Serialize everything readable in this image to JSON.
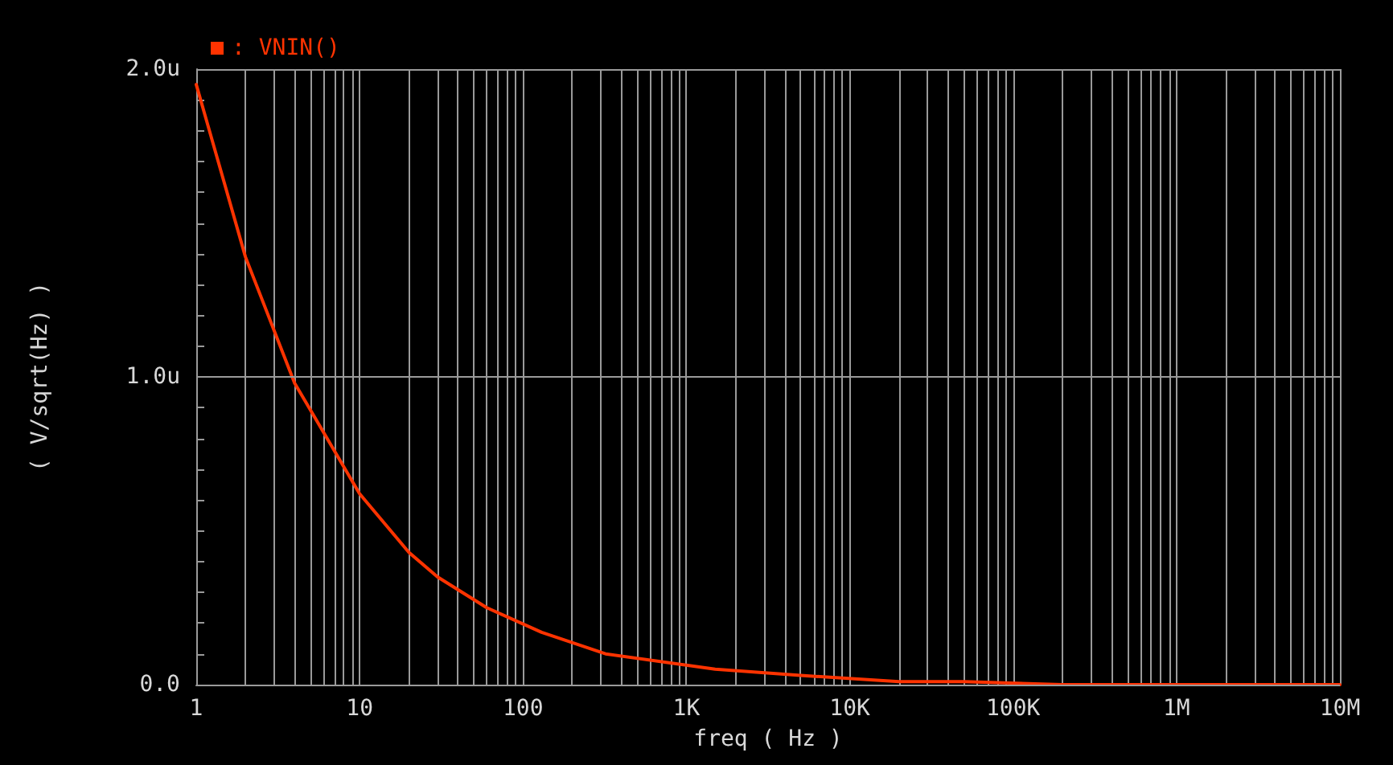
{
  "chart_data": {
    "type": "line",
    "xlabel": "freq ( Hz )",
    "ylabel": "( V/sqrt(Hz) )",
    "log": "x",
    "grid": true,
    "legend": "top left",
    "marker": "none",
    "line_style": "solid",
    "x": [
      1,
      2,
      4,
      10,
      20,
      30,
      60,
      130,
      320,
      1500,
      5000,
      20000,
      50000,
      200000,
      1000000,
      10000000
    ],
    "series": [
      {
        "name": ": VNIN()",
        "color": "#ff3300",
        "values": [
          1.95,
          1.39,
          0.98,
          0.62,
          0.43,
          0.35,
          0.25,
          0.17,
          0.1,
          0.05,
          0.03,
          0.01,
          0.01,
          0,
          0,
          0
        ]
      }
    ],
    "xlim": [
      1,
      10000000
    ],
    "xticks": [
      {
        "value": 1,
        "label": "1"
      },
      {
        "value": 2,
        "label": null
      },
      {
        "value": 3,
        "label": null
      },
      {
        "value": 4,
        "label": null
      },
      {
        "value": 5,
        "label": null
      },
      {
        "value": 6,
        "label": null
      },
      {
        "value": 7,
        "label": null
      },
      {
        "value": 8,
        "label": null
      },
      {
        "value": 9,
        "label": null
      },
      {
        "value": 10,
        "label": "10"
      },
      {
        "value": 20,
        "label": null
      },
      {
        "value": 30,
        "label": null
      },
      {
        "value": 40,
        "label": null
      },
      {
        "value": 50,
        "label": null
      },
      {
        "value": 60,
        "label": null
      },
      {
        "value": 70,
        "label": null
      },
      {
        "value": 80,
        "label": null
      },
      {
        "value": 90,
        "label": null
      },
      {
        "value": 100,
        "label": "100"
      },
      {
        "value": 200,
        "label": null
      },
      {
        "value": 300,
        "label": null
      },
      {
        "value": 400,
        "label": null
      },
      {
        "value": 500,
        "label": null
      },
      {
        "value": 600,
        "label": null
      },
      {
        "value": 700,
        "label": null
      },
      {
        "value": 800,
        "label": null
      },
      {
        "value": 900,
        "label": null
      },
      {
        "value": 1000,
        "label": "1K"
      },
      {
        "value": 2000,
        "label": null
      },
      {
        "value": 3000,
        "label": null
      },
      {
        "value": 4000,
        "label": null
      },
      {
        "value": 5000,
        "label": null
      },
      {
        "value": 6000,
        "label": null
      },
      {
        "value": 7000,
        "label": null
      },
      {
        "value": 8000,
        "label": null
      },
      {
        "value": 9000,
        "label": null
      },
      {
        "value": 10000,
        "label": "10K"
      },
      {
        "value": 20000,
        "label": null
      },
      {
        "value": 30000,
        "label": null
      },
      {
        "value": 40000,
        "label": null
      },
      {
        "value": 50000,
        "label": null
      },
      {
        "value": 60000,
        "label": null
      },
      {
        "value": 70000,
        "label": null
      },
      {
        "value": 80000,
        "label": null
      },
      {
        "value": 90000,
        "label": null
      },
      {
        "value": 100000,
        "label": "100K"
      },
      {
        "value": 200000,
        "label": null
      },
      {
        "value": 300000,
        "label": null
      },
      {
        "value": 400000,
        "label": null
      },
      {
        "value": 500000,
        "label": null
      },
      {
        "value": 600000,
        "label": null
      },
      {
        "value": 700000,
        "label": null
      },
      {
        "value": 800000,
        "label": null
      },
      {
        "value": 900000,
        "label": null
      },
      {
        "value": 1000000,
        "label": "1M"
      },
      {
        "value": 2000000,
        "label": null
      },
      {
        "value": 3000000,
        "label": null
      },
      {
        "value": 4000000,
        "label": null
      },
      {
        "value": 5000000,
        "label": null
      },
      {
        "value": 6000000,
        "label": null
      },
      {
        "value": 7000000,
        "label": null
      },
      {
        "value": 8000000,
        "label": null
      },
      {
        "value": 9000000,
        "label": null
      },
      {
        "value": 10000000,
        "label": "10M"
      }
    ],
    "ylim": [
      0,
      2
    ],
    "yticks": [
      {
        "value": 0,
        "label": "0.0"
      },
      {
        "value": 0.1,
        "label": null
      },
      {
        "value": 0.2,
        "label": null
      },
      {
        "value": 0.3,
        "label": null
      },
      {
        "value": 0.4,
        "label": null
      },
      {
        "value": 0.5,
        "label": null
      },
      {
        "value": 0.6,
        "label": null
      },
      {
        "value": 0.7,
        "label": null
      },
      {
        "value": 0.8,
        "label": null
      },
      {
        "value": 0.9,
        "label": null
      },
      {
        "value": 1,
        "label": "1.0u"
      },
      {
        "value": 1.1,
        "label": null
      },
      {
        "value": 1.2,
        "label": null
      },
      {
        "value": 1.3,
        "label": null
      },
      {
        "value": 1.4,
        "label": null
      },
      {
        "value": 1.5,
        "label": null
      },
      {
        "value": 1.6,
        "label": null
      },
      {
        "value": 1.7,
        "label": null
      },
      {
        "value": 1.8,
        "label": null
      },
      {
        "value": 1.9,
        "label": null
      },
      {
        "value": 2,
        "label": "2.0u"
      }
    ]
  }
}
